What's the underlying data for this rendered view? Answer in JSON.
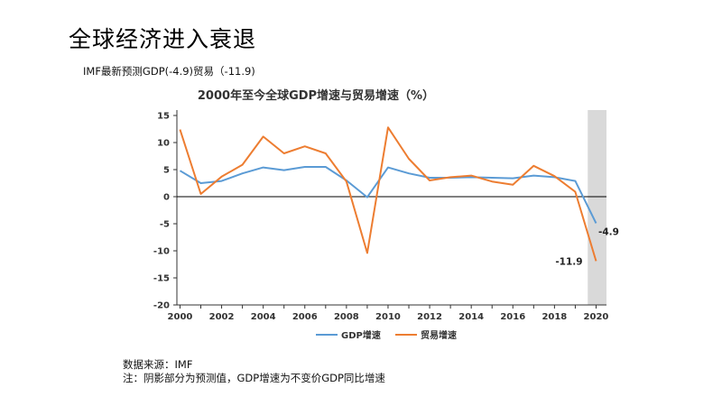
{
  "slide": {
    "title": "全球经济进入衰退",
    "subtitle": "IMF最新预测GDP(-4.9)贸易（-11.9)"
  },
  "footnotes": {
    "source": "数据来源：IMF",
    "note": "注：阴影部分为预测值，GDP增速为不变价GDP同比增速"
  },
  "colors": {
    "gdp": "#5b9bd5",
    "trade": "#ed7d31",
    "forecast_shade": "#d9d9d9",
    "axis": "#333333"
  },
  "chart_data": {
    "type": "line",
    "title": "2000年至今全球GDP增速与贸易增速（%）",
    "xlabel": "",
    "ylabel": "",
    "xlim": [
      2000,
      2020
    ],
    "ylim": [
      -20,
      15
    ],
    "x_ticks": [
      2000,
      2002,
      2004,
      2006,
      2008,
      2010,
      2012,
      2014,
      2016,
      2018,
      2020
    ],
    "y_ticks": [
      15,
      10,
      5,
      0,
      -5,
      -10,
      -15,
      -20
    ],
    "grid": false,
    "legend_position": "bottom",
    "forecast_shade": [
      2019.6,
      2020.5
    ],
    "x": [
      2000,
      2001,
      2002,
      2003,
      2004,
      2005,
      2006,
      2007,
      2008,
      2009,
      2010,
      2011,
      2012,
      2013,
      2014,
      2015,
      2016,
      2017,
      2018,
      2019,
      2020
    ],
    "series": [
      {
        "name": "GDP增速",
        "color": "#5b9bd5",
        "values": [
          4.8,
          2.5,
          2.9,
          4.3,
          5.4,
          4.9,
          5.5,
          5.5,
          3.0,
          -0.1,
          5.4,
          4.3,
          3.5,
          3.5,
          3.6,
          3.5,
          3.4,
          3.9,
          3.6,
          2.9,
          -4.9
        ],
        "end_label": "-4.9"
      },
      {
        "name": "贸易增速",
        "color": "#ed7d31",
        "values": [
          12.4,
          0.5,
          3.7,
          5.9,
          11.1,
          8.0,
          9.3,
          8.0,
          2.8,
          -10.4,
          12.8,
          7.0,
          3.0,
          3.6,
          3.9,
          2.8,
          2.2,
          5.7,
          3.8,
          0.9,
          -11.9
        ],
        "end_label": "-11.9"
      }
    ]
  }
}
